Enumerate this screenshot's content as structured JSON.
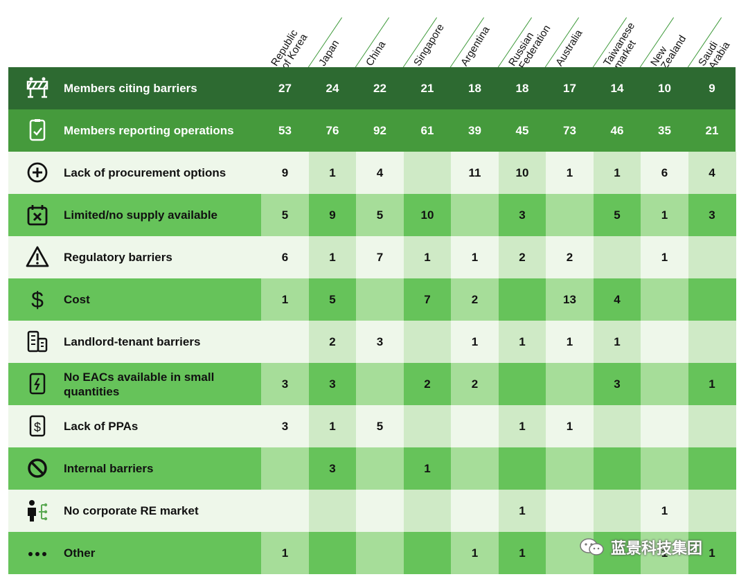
{
  "columns": [
    "Republic\nof Korea",
    "Japan",
    "China",
    "Singapore",
    "Argentina",
    "Russian\nFederation",
    "Australia",
    "Taiwanese\nmarket",
    "New\nZealand",
    "Saudi\nArabia"
  ],
  "chart_data": {
    "type": "table",
    "columns": [
      "Republic of Korea",
      "Japan",
      "China",
      "Singapore",
      "Argentina",
      "Russian Federation",
      "Australia",
      "Taiwanese market",
      "New Zealand",
      "Saudi Arabia"
    ],
    "rows": [
      {
        "label": "Members citing barriers",
        "icon": "barrier-icon",
        "values": [
          "27",
          "24",
          "22",
          "21",
          "18",
          "18",
          "17",
          "14",
          "10",
          "9"
        ]
      },
      {
        "label": "Members reporting operations",
        "icon": "clipboard-check-icon",
        "values": [
          "53",
          "76",
          "92",
          "61",
          "39",
          "45",
          "73",
          "46",
          "35",
          "21"
        ]
      },
      {
        "label": "Lack of procurement options",
        "icon": "plus-circle-icon",
        "values": [
          "9",
          "1",
          "4",
          "",
          "11",
          "10",
          "1",
          "1",
          "6",
          "4"
        ]
      },
      {
        "label": "Limited/no supply available",
        "icon": "calendar-x-icon",
        "values": [
          "5",
          "9",
          "5",
          "10",
          "",
          "3",
          "",
          "5",
          "1",
          "3"
        ]
      },
      {
        "label": "Regulatory barriers",
        "icon": "warning-icon",
        "values": [
          "6",
          "1",
          "7",
          "1",
          "1",
          "2",
          "2",
          "",
          "1",
          ""
        ]
      },
      {
        "label": "Cost",
        "icon": "dollar-icon",
        "values": [
          "1",
          "5",
          "",
          "7",
          "2",
          "",
          "13",
          "4",
          "",
          ""
        ]
      },
      {
        "label": "Landlord-tenant barriers",
        "icon": "building-icon",
        "values": [
          "",
          "2",
          "3",
          "",
          "1",
          "1",
          "1",
          "1",
          "",
          ""
        ]
      },
      {
        "label": "No EACs available in small quantities",
        "icon": "energy-certificate-icon",
        "values": [
          "3",
          "3",
          "",
          "2",
          "2",
          "",
          "",
          "3",
          "",
          "1"
        ]
      },
      {
        "label": "Lack of PPAs",
        "icon": "dollar-document-icon",
        "values": [
          "3",
          "1",
          "5",
          "",
          "",
          "1",
          "1",
          "",
          "",
          ""
        ]
      },
      {
        "label": "Internal barriers",
        "icon": "prohibited-icon",
        "values": [
          "",
          "3",
          "",
          "1",
          "",
          "",
          "",
          "",
          "",
          ""
        ]
      },
      {
        "label": "No corporate RE market",
        "icon": "person-network-icon",
        "values": [
          "",
          "",
          "",
          "",
          "",
          "1",
          "",
          "",
          "1",
          ""
        ]
      },
      {
        "label": "Other",
        "icon": "ellipsis-icon",
        "values": [
          "1",
          "",
          "",
          "",
          "1",
          "1",
          "",
          "",
          "1",
          "1"
        ]
      }
    ]
  },
  "colors": {
    "header_row": "#2d6a31",
    "operations_row": "#459a3c",
    "light_row_label": "#eef7ea",
    "light_row_even": "#eef7ea",
    "light_row_odd": "#cfeac6",
    "dark_row_label": "#66c35a",
    "dark_row_even": "#a6dd99",
    "dark_row_odd": "#66c35a"
  },
  "watermark": "蓝景科技集团"
}
